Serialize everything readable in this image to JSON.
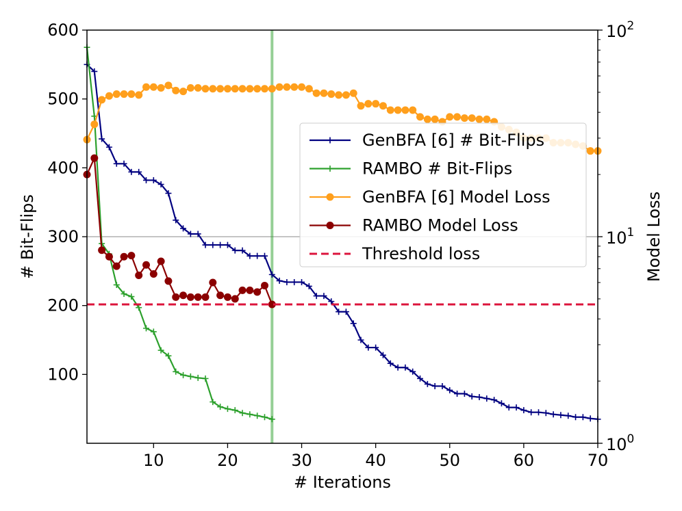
{
  "chart_data": {
    "type": "line",
    "xlabel": "# Iterations",
    "ylabel_left": "# Bit-Flips",
    "ylabel_right": "Model Loss",
    "xlim": [
      1,
      70
    ],
    "ylim_left": [
      0,
      600
    ],
    "ylim_right_log": [
      1,
      100
    ],
    "x_ticks": [
      10,
      20,
      30,
      40,
      50,
      60,
      70
    ],
    "y_ticks_left": [
      100,
      200,
      300,
      400,
      500,
      600
    ],
    "y_ticks_right": [
      {
        "value": 1,
        "base": "10",
        "exp": "0"
      },
      {
        "value": 10,
        "base": "10",
        "exp": "1"
      },
      {
        "value": 100,
        "base": "10",
        "exp": "2"
      }
    ],
    "vertical_line_x": 26,
    "horizontal_gridline_right": 10,
    "threshold_loss": 4.7,
    "legend_position": "center-right",
    "series": [
      {
        "name": "GenBFA [6] # Bit-Flips",
        "axis": "left",
        "marker": "plus",
        "color": "#000080",
        "x": [
          1,
          2,
          3,
          4,
          5,
          6,
          7,
          8,
          9,
          10,
          11,
          12,
          13,
          14,
          15,
          16,
          17,
          18,
          19,
          20,
          21,
          22,
          23,
          24,
          25,
          26,
          27,
          28,
          29,
          30,
          31,
          32,
          33,
          34,
          35,
          36,
          37,
          38,
          39,
          40,
          41,
          42,
          43,
          44,
          45,
          46,
          47,
          48,
          49,
          50,
          51,
          52,
          53,
          54,
          55,
          56,
          57,
          58,
          59,
          60,
          61,
          62,
          63,
          64,
          65,
          66,
          67,
          68,
          69,
          70
        ],
        "values": [
          550,
          540,
          442,
          430,
          406,
          406,
          394,
          394,
          382,
          382,
          376,
          363,
          324,
          312,
          304,
          304,
          288,
          288,
          288,
          288,
          280,
          280,
          272,
          272,
          272,
          245,
          236,
          234,
          234,
          234,
          228,
          214,
          214,
          206,
          191,
          191,
          174,
          150,
          139,
          139,
          128,
          116,
          110,
          110,
          104,
          94,
          86,
          83,
          83,
          77,
          72,
          72,
          68,
          67,
          65,
          63,
          58,
          52,
          52,
          48,
          45,
          45,
          44,
          42,
          41,
          40,
          38,
          38,
          36,
          35
        ]
      },
      {
        "name": "RAMBO # Bit-Flips",
        "axis": "left",
        "marker": "plus",
        "color": "#2ca02c",
        "x": [
          1,
          2,
          3,
          4,
          5,
          6,
          7,
          8,
          9,
          10,
          11,
          12,
          13,
          14,
          15,
          16,
          17,
          18,
          19,
          20,
          21,
          22,
          23,
          24,
          25,
          26
        ],
        "values": [
          575,
          475,
          290,
          275,
          230,
          217,
          213,
          197,
          167,
          162,
          135,
          127,
          104,
          99,
          97,
          95,
          94,
          60,
          53,
          50,
          48,
          44,
          42,
          40,
          38,
          35
        ]
      },
      {
        "name": "GenBFA [6] Model Loss",
        "axis": "right",
        "marker": "circle",
        "color": "#ff9f1c",
        "x": [
          1,
          2,
          3,
          4,
          5,
          6,
          7,
          8,
          9,
          10,
          11,
          12,
          13,
          14,
          15,
          16,
          17,
          18,
          19,
          20,
          21,
          22,
          23,
          24,
          25,
          26,
          27,
          28,
          29,
          30,
          31,
          32,
          33,
          34,
          35,
          36,
          37,
          38,
          39,
          40,
          41,
          42,
          43,
          44,
          45,
          46,
          47,
          48,
          49,
          50,
          51,
          52,
          53,
          54,
          55,
          56,
          57,
          58,
          59,
          60,
          61,
          62,
          63,
          64,
          65,
          66,
          67,
          68,
          69,
          70
        ],
        "values": [
          29.5,
          35,
          46,
          48,
          49,
          49,
          49,
          48.5,
          53,
          53,
          52.5,
          54,
          51,
          50.5,
          52.5,
          52.5,
          52,
          52,
          52,
          52,
          52,
          52,
          52,
          52,
          52,
          52,
          53,
          53,
          53,
          53,
          52,
          49.5,
          49.5,
          49,
          48.5,
          48.5,
          49.5,
          43,
          44,
          44,
          43,
          41,
          41,
          41,
          41,
          38,
          37,
          37,
          36,
          38,
          38,
          37.5,
          37.5,
          37,
          37,
          36,
          34,
          33,
          32,
          30,
          30,
          30,
          30,
          28.5,
          28.5,
          28.5,
          28,
          27.5,
          26,
          26
        ]
      },
      {
        "name": "RAMBO Model Loss",
        "axis": "right",
        "marker": "circle",
        "color": "#8b0000",
        "x": [
          1,
          2,
          3,
          4,
          5,
          6,
          7,
          8,
          9,
          10,
          11,
          12,
          13,
          14,
          15,
          16,
          17,
          18,
          19,
          20,
          21,
          22,
          23,
          24,
          25,
          26
        ],
        "values": [
          20,
          24,
          8.6,
          8.0,
          7.2,
          8.0,
          8.1,
          6.5,
          7.3,
          6.6,
          7.6,
          6.1,
          5.1,
          5.2,
          5.1,
          5.1,
          5.1,
          6.0,
          5.2,
          5.1,
          5.0,
          5.5,
          5.5,
          5.4,
          5.8,
          4.7
        ]
      },
      {
        "name": "Threshold loss",
        "axis": "right",
        "style": "dashed",
        "color": "#dc143c",
        "x": [
          1,
          70
        ],
        "values": [
          4.7,
          4.7
        ]
      }
    ]
  }
}
